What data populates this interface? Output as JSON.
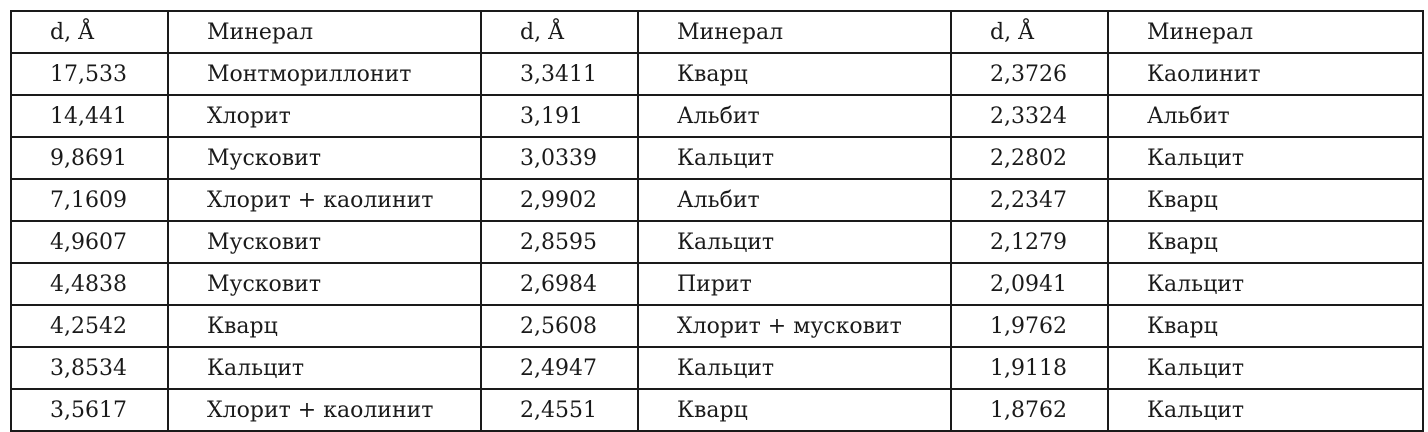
{
  "headers": [
    "d, Å",
    "Минерал",
    "d, Å",
    "Минерал",
    "d, Å",
    "Минерал"
  ],
  "rows": [
    [
      "17,533",
      "Монтмориллонит",
      "3,3411",
      "Кварц",
      "2,3726",
      "Каолинит"
    ],
    [
      "14,441",
      "Хлорит",
      "3,191",
      "Альбит",
      "2,3324",
      "Альбит"
    ],
    [
      "9,8691",
      "Мусковит",
      "3,0339",
      "Кальцит",
      "2,2802",
      "Кальцит"
    ],
    [
      "7,1609",
      "Хлорит + каолинит",
      "2,9902",
      "Альбит",
      "2,2347",
      "Кварц"
    ],
    [
      "4,9607",
      "Мусковит",
      "2,8595",
      "Кальцит",
      "2,1279",
      "Кварц"
    ],
    [
      "4,4838",
      "Мусковит",
      "2,6984",
      "Пирит",
      "2,0941",
      "Кальцит"
    ],
    [
      "4,2542",
      "Кварц",
      "2,5608",
      "Хлорит + мусковит",
      "1,9762",
      "Кварц"
    ],
    [
      "3,8534",
      "Кальцит",
      "2,4947",
      "Кальцит",
      "1,9118",
      "Кальцит"
    ],
    [
      "3,5617",
      "Хлорит + каолинит",
      "2,4551",
      "Кварц",
      "1,8762",
      "Кальцит"
    ]
  ]
}
